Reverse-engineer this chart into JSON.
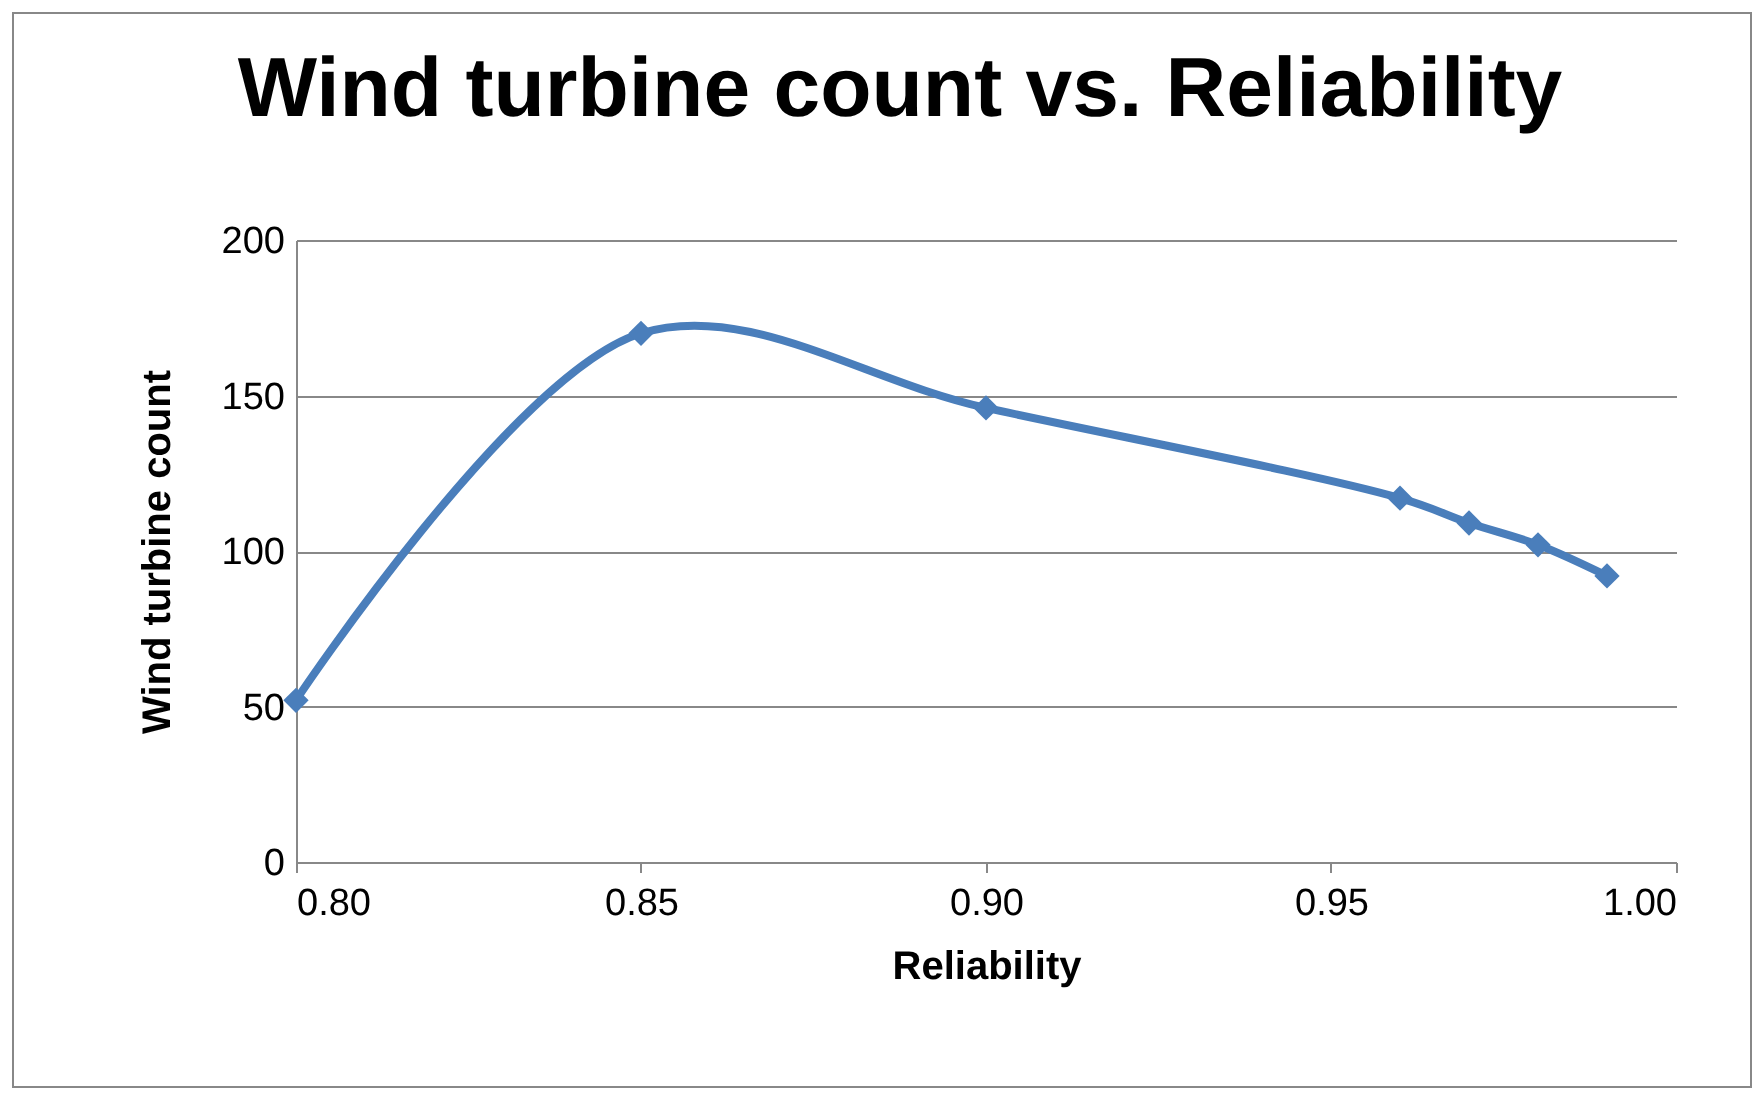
{
  "chart_data": {
    "type": "line",
    "title": "Wind turbine count vs. Reliability",
    "xlabel": "Reliability",
    "ylabel": "Wind turbine count",
    "x": [
      0.8,
      0.85,
      0.9,
      0.96,
      0.97,
      0.98,
      0.99
    ],
    "series": [
      {
        "color": "#4a7ebb",
        "values": [
          52,
          170,
          146,
          117,
          109,
          102,
          92
        ]
      }
    ],
    "xlim": [
      0.8,
      1.0
    ],
    "xticks": [
      {
        "value": 0.8,
        "label": "0.80"
      },
      {
        "value": 0.85,
        "label": "0.85"
      },
      {
        "value": 0.9,
        "label": "0.90"
      },
      {
        "value": 0.95,
        "label": "0.95"
      },
      {
        "value": 1,
        "label": "1.00"
      }
    ],
    "ylim": [
      0,
      200
    ],
    "yticks": [
      0,
      50,
      100,
      150,
      200
    ],
    "grid": "y",
    "marker": "diamond",
    "line_style": "solid"
  }
}
